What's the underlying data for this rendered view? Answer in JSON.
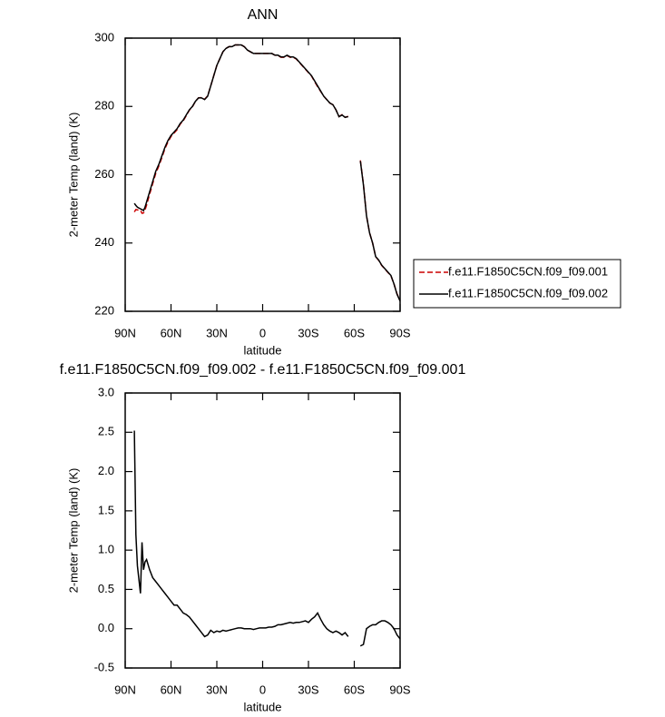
{
  "chart_data": [
    {
      "type": "line",
      "title": "ANN",
      "x_label": "latitude",
      "y_label": "2-meter Temp (land) (K)",
      "x": [
        84,
        83,
        82,
        80,
        79,
        78,
        77,
        76,
        74,
        72,
        70,
        68,
        66,
        64,
        62,
        60,
        58,
        56,
        54,
        52,
        50,
        48,
        46,
        44,
        42,
        40,
        38,
        36,
        34,
        32,
        30,
        28,
        26,
        24,
        22,
        20,
        18,
        16,
        14,
        12,
        10,
        8,
        6,
        4,
        2,
        0,
        -2,
        -4,
        -6,
        -8,
        -10,
        -12,
        -14,
        -16,
        -18,
        -20,
        -22,
        -24,
        -26,
        -28,
        -30,
        -32,
        -34,
        -36,
        -38,
        -40,
        -42,
        -44,
        -46,
        -48,
        -50,
        -52,
        -54,
        -56,
        -60,
        -64,
        -66,
        -68,
        -70,
        -72,
        -74,
        -76,
        -78,
        -80,
        -82,
        -84,
        -86,
        -88,
        -90
      ],
      "series": [
        {
          "name": "f.e11.F1850C5CN.f09_f09.001",
          "color": "#cc0000",
          "linestyle": "dashed",
          "values": [
            249.1,
            249.8,
            249.7,
            249.6,
            248.7,
            248.8,
            249.7,
            251.1,
            254.3,
            257.4,
            260.4,
            262.5,
            265,
            267.6,
            269.6,
            271.2,
            272.2,
            273.2,
            274.8,
            275.8,
            277.3,
            278.9,
            279.9,
            281.5,
            282.5,
            282.6,
            282.1,
            283.1,
            286,
            289,
            292,
            294,
            296,
            297,
            297.5,
            297.5,
            298,
            298,
            298,
            297.5,
            296.5,
            296,
            295.5,
            295.5,
            295.5,
            295.5,
            295.5,
            295.5,
            295.5,
            295,
            294.9,
            294.4,
            294.4,
            294.9,
            294.4,
            294.4,
            293.9,
            292.9,
            291.9,
            290.9,
            289.9,
            288.9,
            287.3,
            285.8,
            284.4,
            283,
            282,
            281,
            280.5,
            279,
            277,
            277.6,
            276.8,
            277.1,
            null,
            264.2,
            257.2,
            248,
            243,
            240,
            236,
            234.9,
            233.4,
            232.4,
            231.4,
            230.4,
            228,
            225.1,
            223.1
          ]
        },
        {
          "name": "f.e11.F1850C5CN.f09_f09.002",
          "color": "#000000",
          "linestyle": "solid",
          "values": [
            251.6,
            251,
            250.5,
            250,
            249.8,
            249.5,
            250.5,
            252,
            255,
            258,
            261,
            263,
            265.5,
            268,
            270,
            271.5,
            272.5,
            273.5,
            275,
            276,
            277.5,
            279,
            280,
            281.5,
            282.5,
            282.5,
            282,
            283,
            286,
            289,
            292,
            294,
            296,
            297,
            297.5,
            297.5,
            298,
            298,
            298,
            297.5,
            296.5,
            296,
            295.5,
            295.5,
            295.5,
            295.5,
            295.5,
            295.5,
            295.5,
            295,
            295,
            294.5,
            294.5,
            295,
            294.5,
            294.5,
            294,
            293,
            292,
            291,
            290,
            289,
            287.5,
            286,
            284.5,
            283,
            282,
            281,
            280.5,
            279,
            277,
            277.5,
            276.8,
            277,
            null,
            264,
            257,
            248,
            243,
            240,
            236,
            235,
            233.5,
            232.5,
            231.5,
            230.5,
            228,
            225,
            223
          ]
        }
      ],
      "xlim": [
        90,
        -90
      ],
      "xticks": [
        {
          "value": 90,
          "label": "90N"
        },
        {
          "value": 60,
          "label": "60N"
        },
        {
          "value": 30,
          "label": "30N"
        },
        0,
        {
          "value": -30,
          "label": "30S"
        },
        {
          "value": -60,
          "label": "60S"
        },
        {
          "value": -90,
          "label": "90S"
        }
      ],
      "ylim": [
        220,
        300
      ],
      "yticks": [
        220,
        240,
        260,
        280,
        300
      ],
      "legend": "right"
    },
    {
      "type": "line",
      "title": "f.e11.F1850C5CN.f09_f09.002 - f.e11.F1850C5CN.f09_f09.001",
      "x_label": "latitude",
      "y_label": "2-meter Temp (land) (K)",
      "x": [
        84,
        83,
        82,
        80,
        79,
        78,
        77,
        76,
        74,
        72,
        70,
        68,
        66,
        64,
        62,
        60,
        58,
        56,
        54,
        52,
        50,
        48,
        46,
        44,
        42,
        40,
        38,
        36,
        34,
        32,
        30,
        28,
        26,
        24,
        22,
        20,
        18,
        16,
        14,
        12,
        10,
        8,
        6,
        4,
        2,
        0,
        -2,
        -4,
        -6,
        -8,
        -10,
        -12,
        -14,
        -16,
        -18,
        -20,
        -22,
        -24,
        -26,
        -28,
        -30,
        -32,
        -34,
        -36,
        -38,
        -40,
        -42,
        -44,
        -46,
        -48,
        -50,
        -52,
        -54,
        -56,
        -60,
        -64,
        -66,
        -68,
        -70,
        -72,
        -74,
        -76,
        -78,
        -80,
        -82,
        -84,
        -86,
        -88,
        -90
      ],
      "values": [
        2.52,
        1.2,
        0.8,
        0.45,
        1.1,
        0.75,
        0.85,
        0.88,
        0.75,
        0.65,
        0.6,
        0.55,
        0.5,
        0.45,
        0.4,
        0.35,
        0.3,
        0.3,
        0.25,
        0.2,
        0.18,
        0.15,
        0.1,
        0.05,
        0.0,
        -0.05,
        -0.1,
        -0.08,
        -0.02,
        -0.05,
        -0.03,
        -0.04,
        -0.02,
        -0.03,
        -0.02,
        -0.01,
        0.0,
        0.01,
        0.01,
        0.0,
        0.0,
        0.0,
        -0.01,
        0.0,
        0.01,
        0.01,
        0.01,
        0.02,
        0.02,
        0.03,
        0.05,
        0.05,
        0.06,
        0.07,
        0.08,
        0.07,
        0.08,
        0.08,
        0.09,
        0.1,
        0.08,
        0.12,
        0.15,
        0.2,
        0.12,
        0.05,
        0.0,
        -0.03,
        -0.05,
        -0.03,
        -0.05,
        -0.08,
        -0.05,
        -0.1,
        null,
        -0.22,
        -0.2,
        0.0,
        0.03,
        0.05,
        0.05,
        0.08,
        0.1,
        0.1,
        0.08,
        0.05,
        0.0,
        -0.08,
        -0.13
      ],
      "color": "#000000",
      "xlim": [
        90,
        -90
      ],
      "xticks": [
        {
          "value": 90,
          "label": "90N"
        },
        {
          "value": 60,
          "label": "60N"
        },
        {
          "value": 30,
          "label": "30N"
        },
        0,
        {
          "value": -30,
          "label": "30S"
        },
        {
          "value": -60,
          "label": "60S"
        },
        {
          "value": -90,
          "label": "90S"
        }
      ],
      "ylim": [
        -0.5,
        3.0
      ],
      "yticks": [
        {
          "value": -0.5,
          "label": "-0.5"
        },
        {
          "value": 0,
          "label": "0.0"
        },
        0.5,
        {
          "value": 1,
          "label": "1.0"
        },
        1.5,
        {
          "value": 2,
          "label": "2.0"
        },
        2.5,
        {
          "value": 3,
          "label": "3.0"
        }
      ]
    }
  ]
}
